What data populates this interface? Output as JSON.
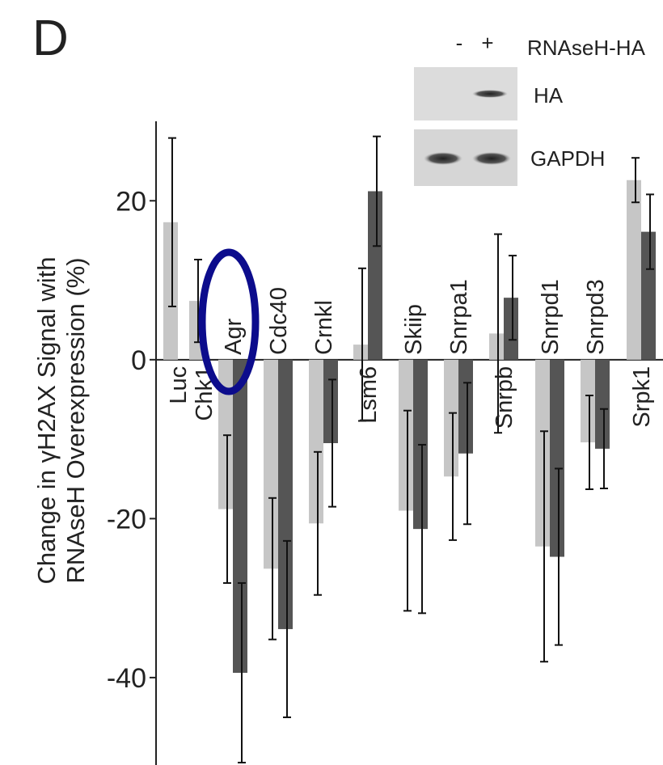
{
  "chart_data": {
    "type": "bar",
    "panel_label": "D",
    "y_label": [
      "Change in γH2AX Signal with",
      "RNAseH Overexpression (%)"
    ],
    "categories": [
      "Luc",
      "Chk1",
      "Agr",
      "Cdc40",
      "Crnkl",
      "Lsm6",
      "Skiip",
      "Snrpa1",
      "Snrpb",
      "Snrpd1",
      "Snrpd3",
      "Srpk1"
    ],
    "series": [
      {
        "color": "#c6c6c6",
        "values": [
          17.3,
          7.4,
          -18.8,
          -26.3,
          -20.6,
          1.9,
          -19.0,
          -14.7,
          3.3,
          -23.5,
          -10.4,
          22.6
        ],
        "errors": [
          10.6,
          5.2,
          9.3,
          8.9,
          9.0,
          9.6,
          12.6,
          8.0,
          12.5,
          14.5,
          5.9,
          2.8
        ]
      },
      {
        "color": "#555555",
        "values": [
          null,
          null,
          -39.4,
          -33.9,
          -10.5,
          21.2,
          -21.3,
          -11.8,
          7.8,
          -24.8,
          -11.2,
          16.1
        ],
        "errors": [
          null,
          null,
          11.3,
          11.1,
          8.0,
          6.9,
          10.6,
          8.9,
          5.3,
          11.1,
          5.0,
          4.7
        ]
      }
    ],
    "ylim": [
      -51,
      30
    ],
    "yticks": [
      20,
      0,
      -20,
      -40
    ],
    "grid": false,
    "inset": {
      "column_title": "RNAseH-HA",
      "columns": [
        "-",
        "+"
      ],
      "rows": [
        "HA",
        "GAPDH"
      ]
    }
  }
}
